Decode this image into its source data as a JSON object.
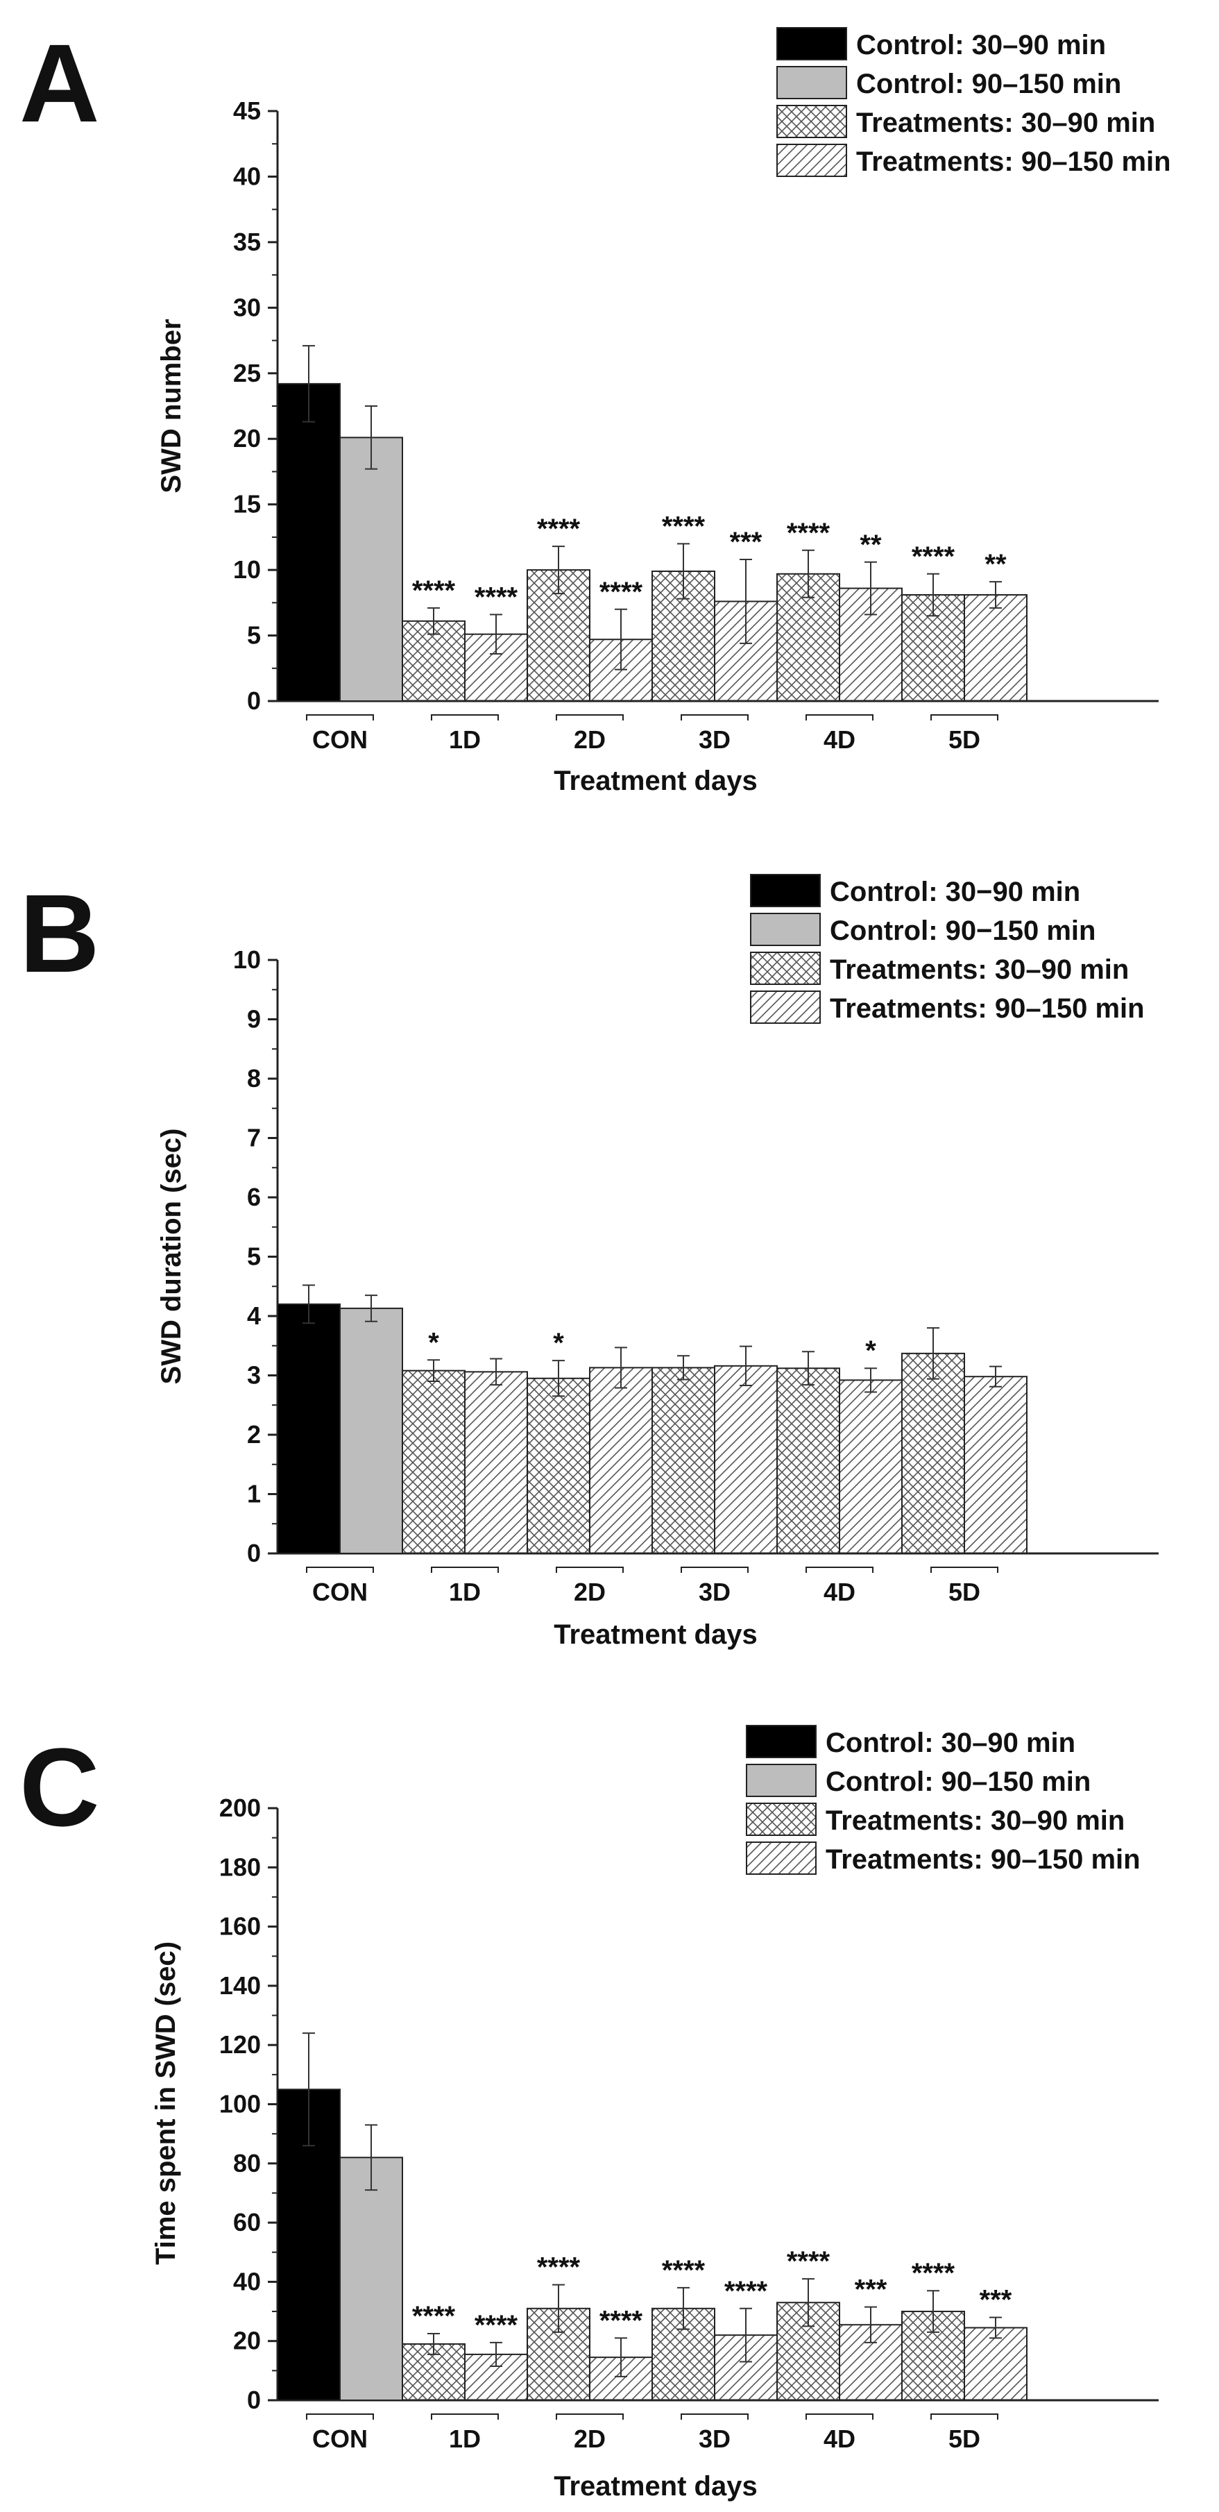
{
  "chart_data": [
    {
      "panel": "A",
      "type": "bar",
      "xlabel": "Treatment days",
      "ylabel": "SWD number",
      "ylim": [
        0,
        45
      ],
      "yticks": [
        0,
        5,
        10,
        15,
        20,
        25,
        30,
        35,
        40,
        45
      ],
      "categories": [
        "CON",
        "1D",
        "2D",
        "3D",
        "4D",
        "5D"
      ],
      "legend": [
        "Control: 30–90 min",
        "Control: 90–150 min",
        "Treatments: 30–90 min",
        "Treatments: 90–150 min"
      ],
      "legend_position": "top-right",
      "series": [
        {
          "name": "30–90 min",
          "values": [
            24.2,
            6.1,
            10.0,
            9.9,
            9.7,
            8.1
          ],
          "errors": [
            2.9,
            1.0,
            1.8,
            2.1,
            1.8,
            1.6
          ],
          "sig": [
            "",
            "****",
            "****",
            "****",
            "****",
            "****"
          ]
        },
        {
          "name": "90–150 min",
          "values": [
            20.1,
            5.1,
            4.7,
            7.6,
            8.6,
            8.1
          ],
          "errors": [
            2.4,
            1.5,
            2.3,
            3.2,
            2.0,
            1.0
          ],
          "sig": [
            "",
            "****",
            "****",
            "***",
            "**",
            "**"
          ]
        }
      ]
    },
    {
      "panel": "B",
      "type": "bar",
      "xlabel": "Treatment days",
      "ylabel": "SWD duration (sec)",
      "ylim": [
        0,
        10
      ],
      "yticks": [
        0,
        1,
        2,
        3,
        4,
        5,
        6,
        7,
        8,
        9,
        10
      ],
      "categories": [
        "CON",
        "1D",
        "2D",
        "3D",
        "4D",
        "5D"
      ],
      "legend": [
        "Control: 30−90 min",
        "Control: 90−150 min",
        "Treatments: 30–90 min",
        "Treatments: 90–150 min"
      ],
      "legend_position": "top-right",
      "series": [
        {
          "name": "30–90 min",
          "values": [
            4.2,
            3.08,
            2.95,
            3.13,
            3.12,
            3.37
          ],
          "errors": [
            0.32,
            0.18,
            0.3,
            0.2,
            0.28,
            0.43
          ],
          "sig": [
            "",
            "*",
            "*",
            "",
            "",
            ""
          ]
        },
        {
          "name": "90–150 min",
          "values": [
            4.13,
            3.06,
            3.13,
            3.16,
            2.92,
            2.98
          ],
          "errors": [
            0.22,
            0.22,
            0.34,
            0.33,
            0.2,
            0.17
          ],
          "sig": [
            "",
            "",
            "",
            "",
            "*",
            ""
          ]
        }
      ]
    },
    {
      "panel": "C",
      "type": "bar",
      "xlabel": "Treatment days",
      "ylabel": "Time spent in SWD (sec)",
      "ylim": [
        0,
        200
      ],
      "yticks": [
        0,
        20,
        40,
        60,
        80,
        100,
        120,
        140,
        160,
        180,
        200
      ],
      "categories": [
        "CON",
        "1D",
        "2D",
        "3D",
        "4D",
        "5D"
      ],
      "legend": [
        "Control: 30–90 min",
        "Control: 90–150 min",
        "Treatments: 30–90 min",
        "Treatments: 90–150 min"
      ],
      "legend_position": "top-right",
      "series": [
        {
          "name": "30–90 min",
          "values": [
            105,
            19,
            31,
            31,
            33,
            30
          ],
          "errors": [
            19,
            3.5,
            8,
            7,
            8,
            7
          ],
          "sig": [
            "",
            "****",
            "****",
            "****",
            "****",
            "****"
          ]
        },
        {
          "name": "90–150 min",
          "values": [
            82,
            15.5,
            14.5,
            22,
            25.5,
            24.5
          ],
          "errors": [
            11,
            4,
            6.5,
            9,
            6,
            3.5
          ],
          "sig": [
            "",
            "****",
            "****",
            "****",
            "***",
            "***"
          ]
        }
      ]
    }
  ],
  "colors": {
    "control_early": "#000000",
    "control_late": "#bdbdbd",
    "outline": "#222222",
    "hatch": "#555555"
  }
}
